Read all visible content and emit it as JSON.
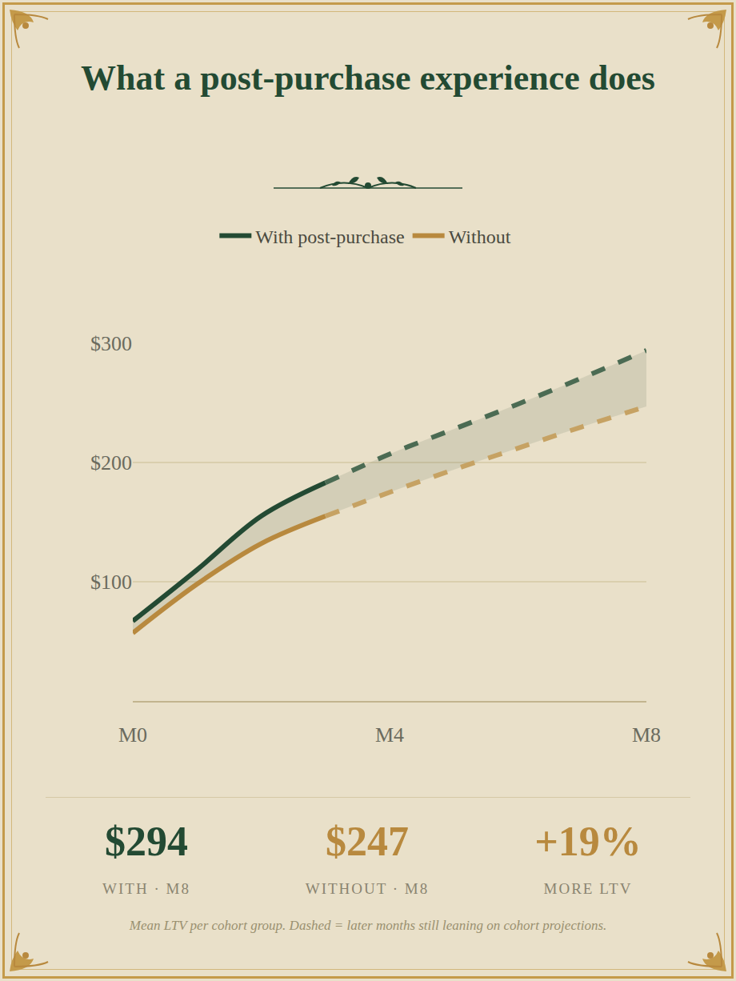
{
  "chart_data": {
    "type": "line",
    "title": "What a post-purchase experience does",
    "x": [
      0,
      1,
      2,
      3,
      4,
      5,
      6,
      7,
      8
    ],
    "xlim": [
      0,
      8
    ],
    "xticks": [
      {
        "value": 0,
        "label": "M0"
      },
      {
        "value": 4,
        "label": "M4"
      },
      {
        "value": 8,
        "label": "M8"
      }
    ],
    "ylim": [
      0,
      300
    ],
    "yticks": [
      {
        "value": 100,
        "label": "$100"
      },
      {
        "value": 200,
        "label": "$200"
      },
      {
        "value": 300,
        "label": "$300"
      }
    ],
    "grid": true,
    "legend": "top",
    "series": [
      {
        "name": "With post-purchase",
        "color": "#234a33",
        "line_style": "solid",
        "values": [
          67,
          110,
          155,
          183,
          null,
          null,
          null,
          null,
          null
        ]
      },
      {
        "name": "With post-purchase",
        "color": "#4b6b53",
        "line_style": "dashed",
        "values": [
          null,
          null,
          null,
          183,
          207,
          228,
          249,
          271,
          294
        ]
      },
      {
        "name": "Without",
        "color": "#b8893e",
        "line_style": "solid",
        "values": [
          57,
          98,
          132,
          155,
          null,
          null,
          null,
          null,
          null
        ]
      },
      {
        "name": "Without",
        "color": "#c6a263",
        "line_style": "dashed",
        "values": [
          null,
          null,
          null,
          155,
          175,
          194,
          212,
          230,
          247
        ]
      }
    ],
    "annotations": [
      {
        "text": "$294",
        "label": "WITH · M8",
        "color": "#234a33"
      },
      {
        "text": "$247",
        "label": "WITHOUT · M8",
        "color": "#b8893e"
      },
      {
        "text": "+19%",
        "label": "MORE LTV",
        "color": "#b8893e"
      }
    ],
    "caption": "Mean LTV per cohort group. Dashed = later months still leaning on cohort projections."
  }
}
